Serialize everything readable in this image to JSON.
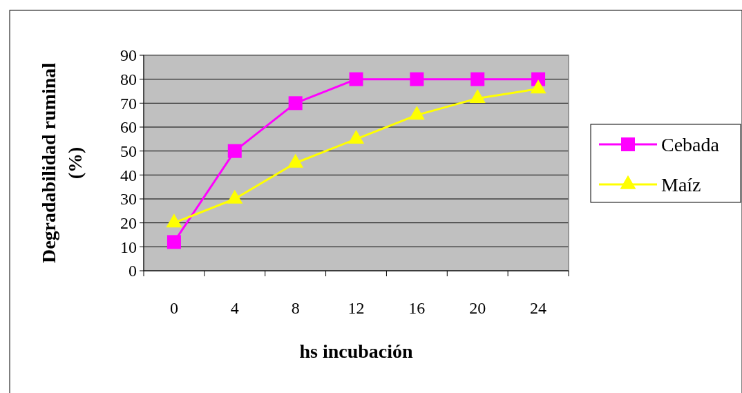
{
  "chart_data": {
    "type": "line",
    "xlabel": "hs incubación",
    "ylabel": "Degradabilidad ruminal (%)",
    "categories": [
      "0",
      "4",
      "8",
      "12",
      "16",
      "20",
      "24"
    ],
    "series": [
      {
        "name": "Cebada",
        "color": "#ff00ff",
        "marker": "square",
        "values": [
          12,
          50,
          70,
          80,
          80,
          80,
          80
        ]
      },
      {
        "name": "Maíz",
        "color": "#ffff00",
        "marker": "triangle",
        "values": [
          20,
          30,
          45,
          55,
          65,
          72,
          76
        ]
      }
    ],
    "ylim": [
      0,
      90
    ],
    "yticks": [
      0,
      10,
      20,
      30,
      40,
      50,
      60,
      70,
      80,
      90
    ],
    "grid": "y",
    "legend": "right"
  }
}
